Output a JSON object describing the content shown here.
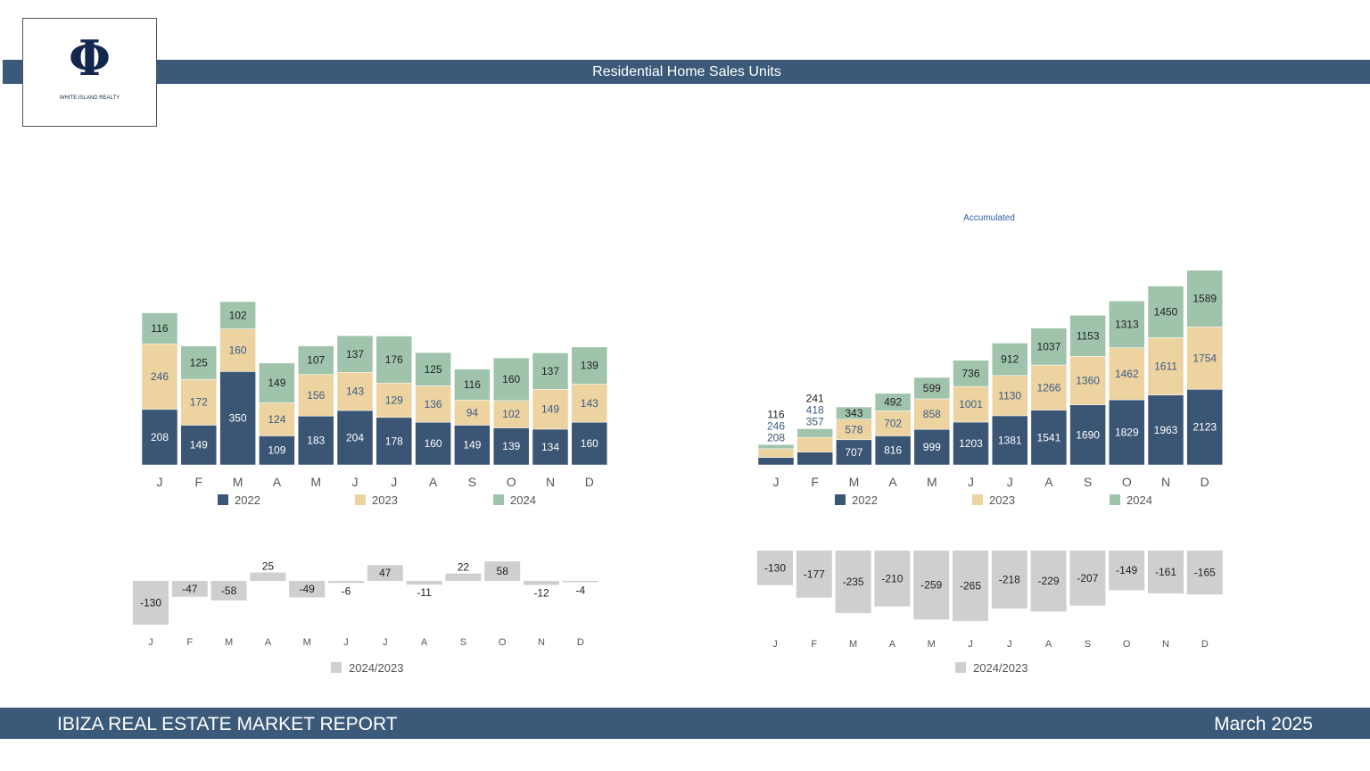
{
  "header": {
    "title": "Residential Home Sales Units"
  },
  "logo": {
    "symbol": "Φ",
    "text": "WHITE ISLAND REALTY"
  },
  "footer": {
    "title": "IBIZA REAL ESTATE MARKET REPORT",
    "date": "March 2025"
  },
  "colors": {
    "y2022": "#3b5574",
    "y2023": "#ecd39f",
    "y2024": "#9fc4ab",
    "diff": "#cfcfcf",
    "bar_header": "#3b5978"
  },
  "chart_data": [
    {
      "type": "bar",
      "stacked": true,
      "title": "",
      "categories": [
        "J",
        "F",
        "M",
        "A",
        "M",
        "J",
        "J",
        "A",
        "S",
        "O",
        "N",
        "D"
      ],
      "series": [
        {
          "name": "2022",
          "values": [
            208,
            149,
            350,
            109,
            183,
            204,
            178,
            160,
            149,
            139,
            134,
            160
          ]
        },
        {
          "name": "2023",
          "values": [
            246,
            172,
            160,
            124,
            156,
            143,
            129,
            136,
            94,
            102,
            149,
            143
          ]
        },
        {
          "name": "2024",
          "values": [
            116,
            125,
            102,
            149,
            107,
            137,
            176,
            125,
            116,
            160,
            137,
            139
          ]
        }
      ],
      "legend": "bottom"
    },
    {
      "type": "bar",
      "stacked": true,
      "title": "Accumulated",
      "categories": [
        "J",
        "F",
        "M",
        "A",
        "M",
        "J",
        "J",
        "A",
        "S",
        "O",
        "N",
        "D"
      ],
      "series": [
        {
          "name": "2022",
          "values": [
            208,
            357,
            707,
            816,
            999,
            1203,
            1381,
            1541,
            1690,
            1829,
            1963,
            2123
          ]
        },
        {
          "name": "2023",
          "values": [
            246,
            418,
            578,
            702,
            858,
            1001,
            1130,
            1266,
            1360,
            1462,
            1611,
            1754
          ]
        },
        {
          "name": "2024",
          "values": [
            116,
            241,
            343,
            492,
            599,
            736,
            912,
            1037,
            1153,
            1313,
            1450,
            1589
          ]
        }
      ],
      "legend": "bottom"
    },
    {
      "type": "bar",
      "title": "",
      "categories": [
        "J",
        "F",
        "M",
        "A",
        "M",
        "J",
        "J",
        "A",
        "S",
        "O",
        "N",
        "D"
      ],
      "series": [
        {
          "name": "2024/2023",
          "values": [
            -130,
            -47,
            -58,
            25,
            -49,
            -6,
            47,
            -11,
            22,
            58,
            -12,
            -4
          ]
        }
      ],
      "legend": "bottom"
    },
    {
      "type": "bar",
      "title": "",
      "categories": [
        "J",
        "F",
        "M",
        "A",
        "M",
        "J",
        "J",
        "A",
        "S",
        "O",
        "N",
        "D"
      ],
      "series": [
        {
          "name": "2024/2023",
          "values": [
            -130,
            -177,
            -235,
            -210,
            -259,
            -265,
            -218,
            -229,
            -207,
            -149,
            -161,
            -165
          ]
        }
      ],
      "legend": "bottom"
    }
  ]
}
